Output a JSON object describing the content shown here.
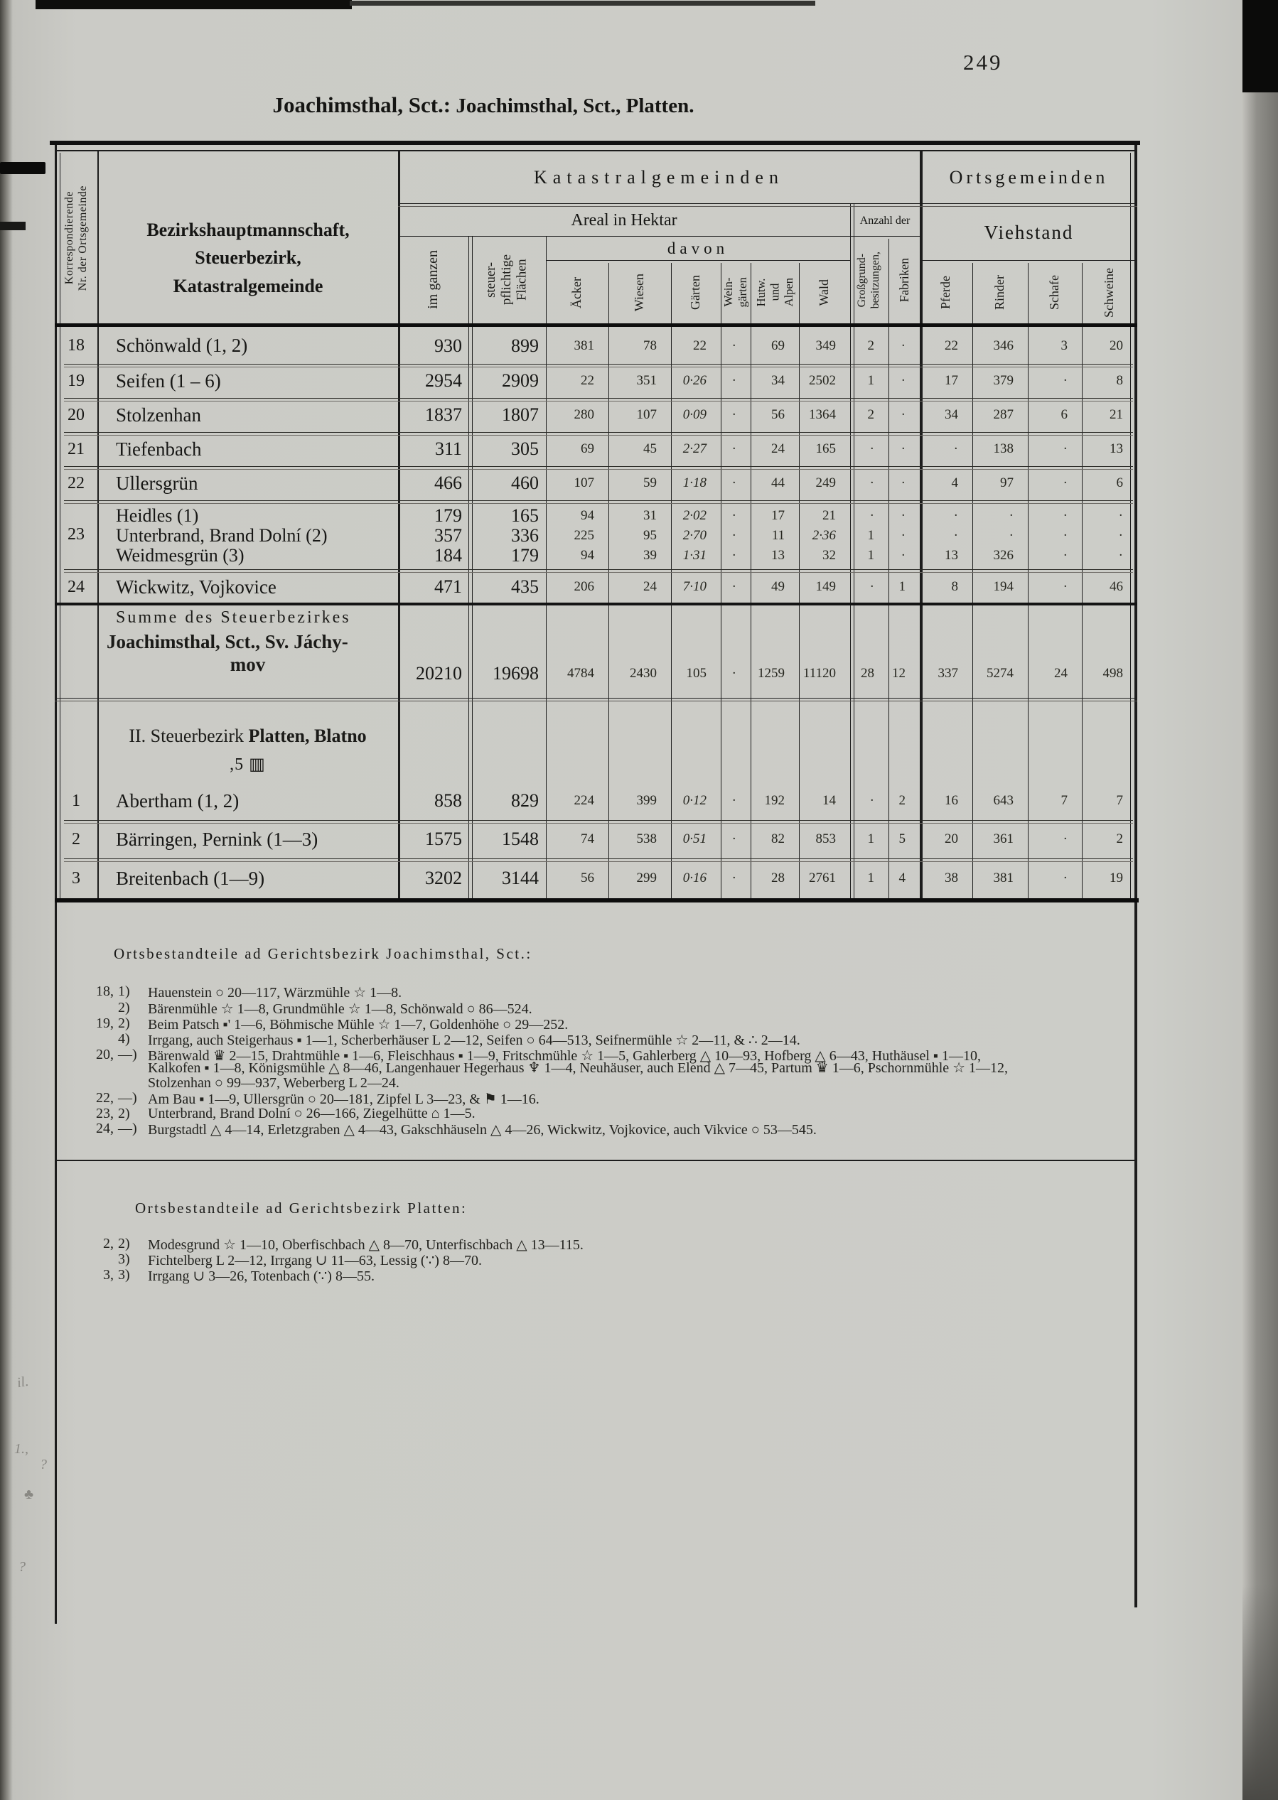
{
  "page": {
    "number": "249",
    "title_bold": "Joachimsthal, Sct.:",
    "title_rest": " Joachimsthal, Sct., Platten."
  },
  "table": {
    "header": {
      "korresp": "Korrespondierende\nNr. der Ortsgemeinde",
      "main": "Bezirkshauptmannschaft,\nSteuerbezirk,\nKatastralgemeinde",
      "katastral": "Katastralgemeinden",
      "orts": "Ortsgemeinden",
      "areal": "Areal in Hektar",
      "davon": "davon",
      "anzahl": "Anzahl der",
      "viehstand": "Viehstand",
      "cols": [
        "im ganzen",
        "steuer-\npflichtige\nFlächen",
        "Äcker",
        "Wiesen",
        "Gärten",
        "Wein-\ngärten",
        "Hutw.\nund\nAlpen",
        "Wald",
        "Großgrund-\nbesitzungen,",
        "Fabriken",
        "Pferde",
        "Rinder",
        "Schafe",
        "Schweine"
      ]
    },
    "rows_joachimsthal": [
      {
        "nr": "18",
        "name": "Schönwald (1, 2)",
        "values": [
          "930",
          "899",
          "381",
          "78",
          "22",
          "·",
          "69",
          "349",
          "2",
          "·",
          "22",
          "346",
          "3",
          "20"
        ]
      },
      {
        "nr": "19",
        "name": "Seifen (1 – 6)",
        "values": [
          "2954",
          "2909",
          "22",
          "351",
          "0·26",
          "·",
          "34",
          "2502",
          "1",
          "·",
          "17",
          "379",
          "·",
          "8"
        ]
      },
      {
        "nr": "20",
        "name": "Stolzenhan",
        "values": [
          "1837",
          "1807",
          "280",
          "107",
          "0·09",
          "·",
          "56",
          "1364",
          "2",
          "·",
          "34",
          "287",
          "6",
          "21"
        ]
      },
      {
        "nr": "21",
        "name": "Tiefenbach",
        "values": [
          "311",
          "305",
          "69",
          "45",
          "2·27",
          "·",
          "24",
          "165",
          "·",
          "·",
          "·",
          "138",
          "·",
          "13"
        ]
      },
      {
        "nr": "22",
        "name": "Ullersgrün",
        "values": [
          "466",
          "460",
          "107",
          "59",
          "1·18",
          "·",
          "44",
          "249",
          "·",
          "·",
          "4",
          "97",
          "·",
          "6"
        ]
      },
      {
        "nr": "23",
        "names": [
          "Heidles (1)",
          "Unterbrand, Brand Dolní (2)",
          "Weidmesgrün (3)"
        ],
        "values_rows": [
          [
            "179",
            "165",
            "94",
            "31",
            "2·02",
            "·",
            "17",
            "21",
            "·",
            "·",
            "·",
            "·",
            "·",
            "·"
          ],
          [
            "357",
            "336",
            "225",
            "95",
            "2·70",
            "·",
            "11",
            "2·36",
            "1",
            "·",
            "·",
            "·",
            "·",
            "·"
          ],
          [
            "184",
            "179",
            "94",
            "39",
            "1·31",
            "·",
            "13",
            "32",
            "1",
            "·",
            "13",
            "326",
            "·",
            "·"
          ]
        ]
      },
      {
        "nr": "24",
        "name": "Wickwitz, Vojkovice",
        "values": [
          "471",
          "435",
          "206",
          "24",
          "7·10",
          "·",
          "49",
          "149",
          "·",
          "1",
          "8",
          "194",
          "·",
          "46"
        ]
      }
    ],
    "summe": {
      "label_line1": "Summe des Steuerbezirkes",
      "label_line2": "Joachimsthal, Sct., Sv. Jáchy-",
      "label_line3": "mov",
      "values": [
        "20210",
        "19698",
        "4784",
        "2430",
        "105",
        "·",
        "1259",
        "11120",
        "28",
        "12",
        "337",
        "5274",
        "24",
        "498"
      ]
    },
    "section2": {
      "prefix": "II. Steuerbezirk ",
      "bold": "Platten, Blatno",
      "line2": ",5 ▥"
    },
    "rows_platten": [
      {
        "nr": "1",
        "name": "Abertham (1, 2)",
        "values": [
          "858",
          "829",
          "224",
          "399",
          "0·12",
          "·",
          "192",
          "14",
          "·",
          "2",
          "16",
          "643",
          "7",
          "7"
        ]
      },
      {
        "nr": "2",
        "name": "Bärringen, Pernink (1—3)",
        "values": [
          "1575",
          "1548",
          "74",
          "538",
          "0·51",
          "·",
          "82",
          "853",
          "1",
          "5",
          "20",
          "361",
          "·",
          "2"
        ]
      },
      {
        "nr": "3",
        "name": "Breitenbach (1—9)",
        "values": [
          "3202",
          "3144",
          "56",
          "299",
          "0·16",
          "·",
          "28",
          "2761",
          "1",
          "4",
          "38",
          "381",
          "·",
          "19"
        ]
      }
    ]
  },
  "footnotes_joachimsthal": {
    "heading": "Ortsbestandteile ad Gerichtsbezirk Joachimsthal, Sct.:",
    "lines": [
      {
        "n": "18,",
        "m": "1)",
        "t": "Hauenstein ○ 20—117, Wärzmühle ☆ 1—8."
      },
      {
        "n": "",
        "m": "2)",
        "t": "Bärenmühle ☆ 1—8, Grundmühle ☆ 1—8, Schönwald ○ 86—524."
      },
      {
        "n": "19,",
        "m": "2)",
        "t": "Beim Patsch ▪' 1—6, Böhmische Mühle ☆ 1—7, Goldenhöhe ○ 29—252."
      },
      {
        "n": "",
        "m": "4)",
        "t": "Irrgang, auch Steigerhaus ▪ 1—1, Scherberhäuser L 2—12, Seifen ○ 64—513, Seifnermühle ☆ 2—11, & ∴ 2—14."
      },
      {
        "n": "20,",
        "m": "—)",
        "t": "Bärenwald ♛ 2—15, Drahtmühle ▪ 1—6, Fleischhaus ▪ 1—9, Fritschmühle ☆ 1—5, Gahlerberg △ 10—93, Hofberg △ 6—43, Huthäusel ▪ 1—10,"
      },
      {
        "n": "",
        "m": "",
        "t": "Kalkofen ▪ 1—8, Königsmühle △ 8—46, Langenhauer Hegerhaus ♆ 1—4, Neuhäuser, auch Elend △ 7—45, Partum ♛ 1—6, Pschornmühle ☆ 1—12,"
      },
      {
        "n": "",
        "m": "",
        "t": "Stolzenhan ○ 99—937, Weberberg L 2—24."
      },
      {
        "n": "22,",
        "m": "—)",
        "t": "Am Bau ▪ 1—9, Ullersgrün ○ 20—181, Zipfel L 3—23, & ⚑ 1—16."
      },
      {
        "n": "23,",
        "m": "2)",
        "t": "Unterbrand, Brand Dolní ○ 26—166, Ziegelhütte ⌂ 1—5."
      },
      {
        "n": "24,",
        "m": "—)",
        "t": "Burgstadtl △ 4—14, Erletzgraben △ 4—43, Gakschhäuseln △ 4—26, Wickwitz, Vojkovice, auch Vikvice ○ 53—545."
      }
    ]
  },
  "footnotes_platten": {
    "heading": "Ortsbestandteile ad Gerichtsbezirk Platten:",
    "lines": [
      {
        "n": "2,",
        "m": "2)",
        "t": "Modesgrund ☆ 1—10, Oberfischbach △ 8—70, Unterfischbach △ 13—115."
      },
      {
        "n": "",
        "m": "3)",
        "t": "Fichtelberg L 2—12, Irrgang ∪ 11—63, Lessig (∵) 8—70."
      },
      {
        "n": "3,",
        "m": "3)",
        "t": "Irrgang ∪ 3—26, Totenbach (∵) 8—55."
      }
    ]
  },
  "margin_marks": [
    "il.",
    "1.,",
    "?",
    "♣",
    "?"
  ]
}
